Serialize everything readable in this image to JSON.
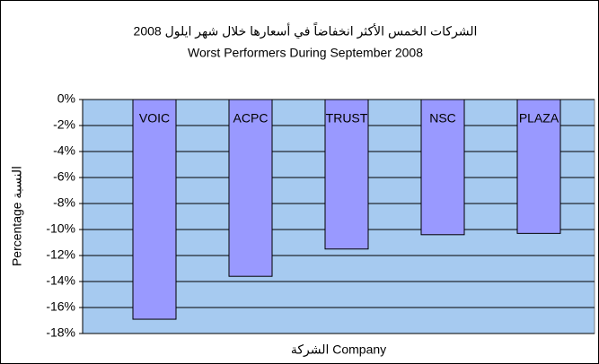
{
  "chart_data": {
    "type": "bar",
    "title": "الشركات الخمس الأكثر انخفاضاً في أسعارها خلال شهر ايلول 2008",
    "subtitle": "Worst Performers During September 2008",
    "x_label": "الشركة Company",
    "y_label": "Percentage النسبة",
    "categories": [
      "VOIC",
      "ACPC",
      "TRUST",
      "NSC",
      "PLAZA"
    ],
    "values": [
      -16.9,
      -13.6,
      -11.5,
      -10.4,
      -10.3
    ],
    "color": "#9999ff",
    "ylim": [
      -18,
      0
    ],
    "yticks": [
      {
        "value": 0,
        "label": "0%"
      },
      {
        "value": -2,
        "label": "-2%"
      },
      {
        "value": -4,
        "label": "-4%"
      },
      {
        "value": -6,
        "label": "-6%"
      },
      {
        "value": -8,
        "label": "-8%"
      },
      {
        "value": -10,
        "label": "-10%"
      },
      {
        "value": -12,
        "label": "-12%"
      },
      {
        "value": -14,
        "label": "-14%"
      },
      {
        "value": -16,
        "label": "-16%"
      },
      {
        "value": -18,
        "label": "-18%"
      }
    ],
    "grid": true
  }
}
